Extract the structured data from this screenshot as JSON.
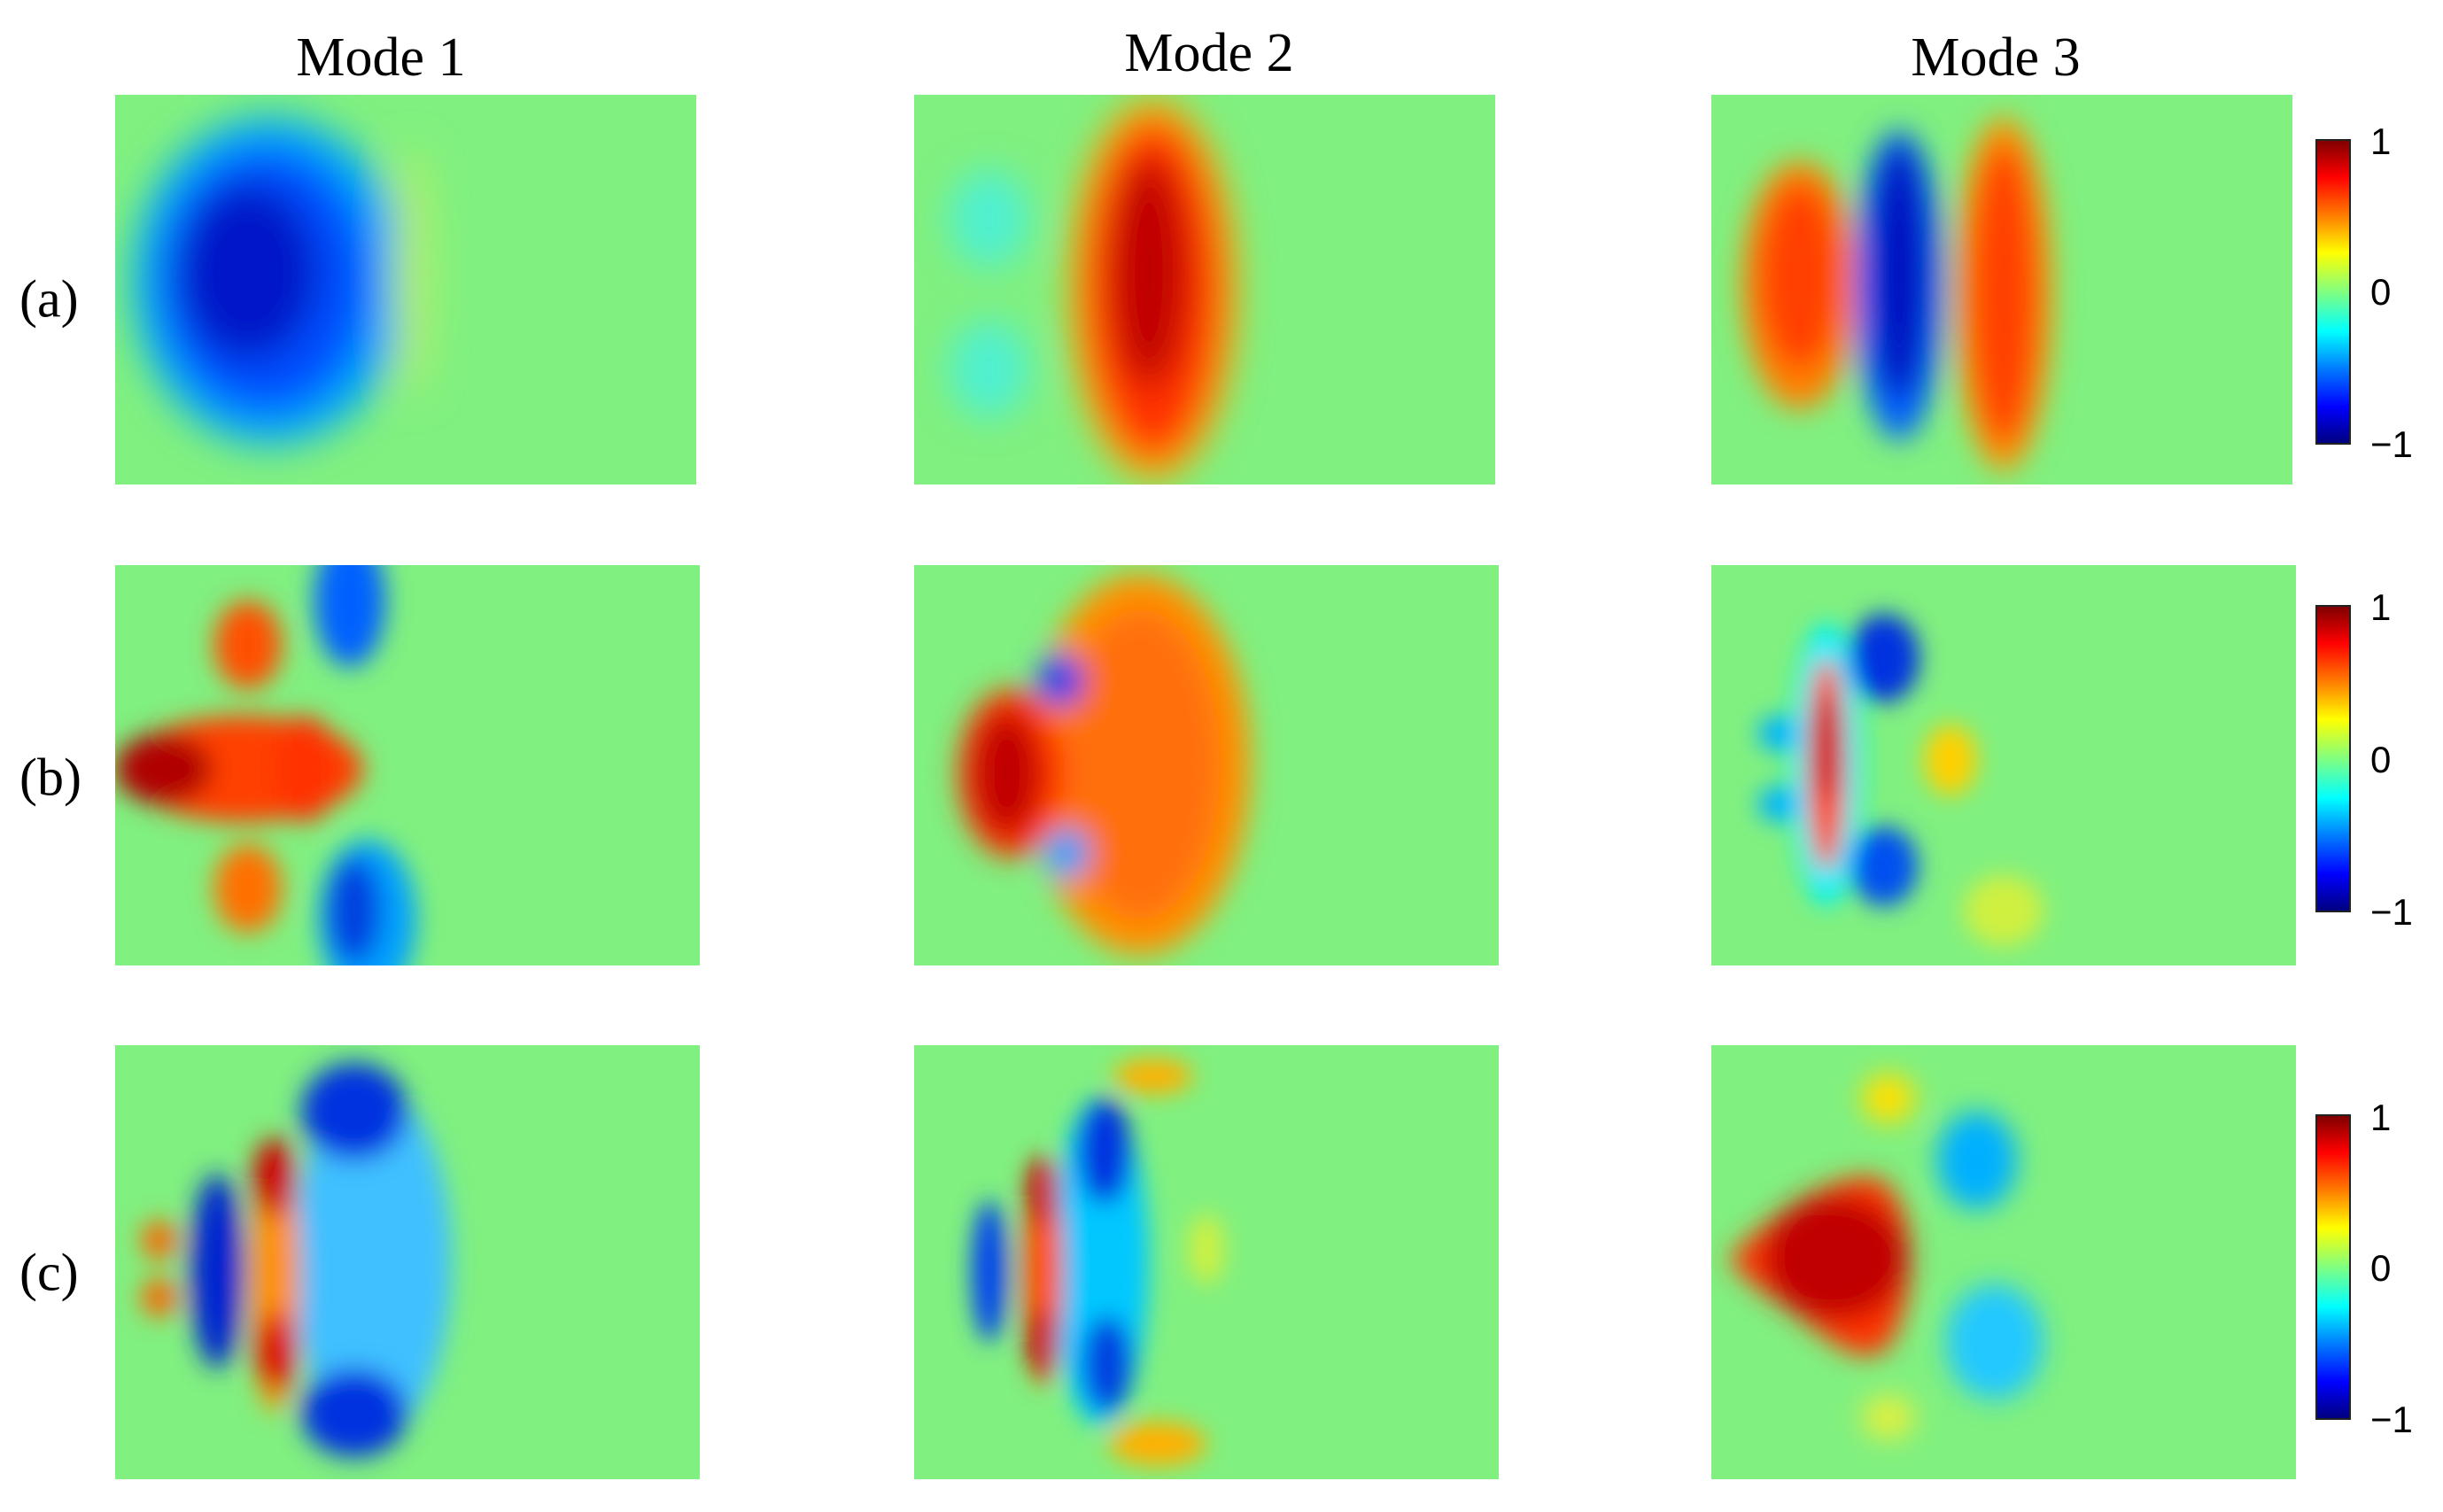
{
  "chart_data": {
    "type": "heatmap",
    "columns": [
      "Mode 1",
      "Mode 2",
      "Mode 3"
    ],
    "rows": [
      "(a)",
      "(b)",
      "(c)"
    ],
    "colorbar": {
      "ticks": [
        "1",
        "0",
        "−1"
      ],
      "range": [
        -1,
        1
      ],
      "colormap": "jet"
    },
    "background_value": 0,
    "colors": {
      "max": "#800000",
      "high": "#ff3000",
      "mid_high": "#ff9000",
      "zero": "#80f080",
      "mid_low": "#00c8ff",
      "low": "#0040ff",
      "min": "#000090"
    }
  }
}
